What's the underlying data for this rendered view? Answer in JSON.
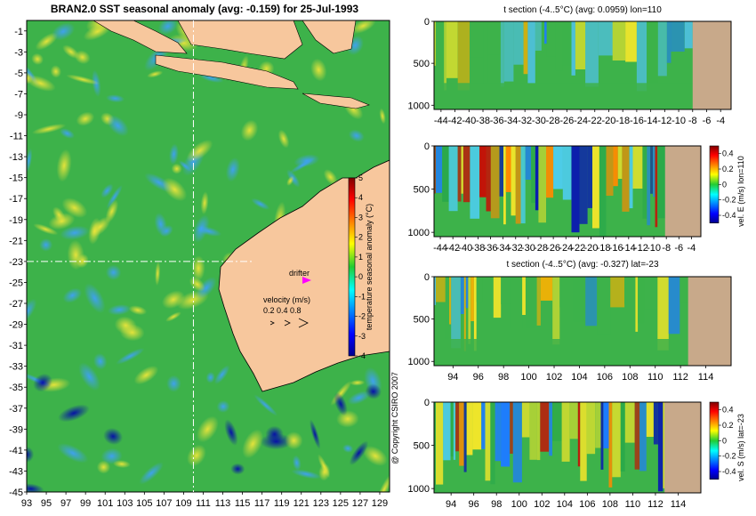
{
  "chart_data": [
    {
      "type": "heatmap",
      "title": "BRAN2.0 SST seasonal anomaly (avg: -0.159) for 25-Jul-1993",
      "x_ticks": [
        "93",
        "95",
        "97",
        "99",
        "101",
        "103",
        "105",
        "107",
        "109",
        "111",
        "113",
        "115",
        "117",
        "119",
        "121",
        "123",
        "125",
        "127",
        "129"
      ],
      "y_ticks": [
        "-1",
        "-3",
        "-5",
        "-7",
        "-9",
        "-11",
        "-13",
        "-15",
        "-17",
        "-19",
        "-21",
        "-23",
        "-25",
        "-27",
        "-29",
        "-31",
        "-33",
        "-35",
        "-37",
        "-39",
        "-41",
        "-43",
        "-45"
      ],
      "xlim": [
        93,
        130
      ],
      "ylim": [
        -45,
        0
      ],
      "colorbar": {
        "label": "temperature seasonal anomaly (°C)",
        "ticks": [
          "5",
          "4",
          "3",
          "2",
          "1",
          "0",
          "-1",
          "-2",
          "-3",
          "-4"
        ],
        "range": [
          -4,
          5
        ]
      },
      "markers": {
        "drifter_label": "drifter",
        "velocity_title": "velocity (m/s)",
        "velocity_scale": "0.2 0.4 0.8",
        "section_lon": 110,
        "section_lat": -23
      },
      "copyright": "@ Copyright CSIRO 2007"
    },
    {
      "type": "heatmap",
      "title": "t section (-4..5°C) (avg: 0.0959) lon=110",
      "x_ticks": [
        "-44",
        "-42",
        "-40",
        "-38",
        "-36",
        "-34",
        "-32",
        "-30",
        "-28",
        "-26",
        "-24",
        "-22",
        "-20",
        "-18",
        "-16",
        "-14",
        "-12",
        "-10",
        "-8",
        "-6",
        "-4"
      ],
      "y_ticks": [
        "0",
        "500",
        "1000"
      ],
      "xlim": [
        -45,
        -2.5
      ],
      "ylim": [
        1050,
        0
      ]
    },
    {
      "type": "heatmap",
      "title": "",
      "x_ticks": [
        "-44",
        "-42",
        "-40",
        "-38",
        "-36",
        "-34",
        "-32",
        "-30",
        "-28",
        "-26",
        "-24",
        "-22",
        "-20",
        "-18",
        "-16",
        "-14",
        "-12",
        "-10",
        "-8",
        "-6",
        "-4"
      ],
      "y_ticks": [
        "0",
        "500",
        "1000"
      ],
      "xlim": [
        -45,
        -2.5
      ],
      "ylim": [
        1050,
        0
      ],
      "colorbar": {
        "label": "vel. E (m/s) lon=110",
        "ticks": [
          "0.4",
          "0.2",
          "0",
          "-0.2",
          "-0.4"
        ],
        "range": [
          -0.5,
          0.5
        ]
      }
    },
    {
      "type": "heatmap",
      "title": "t section (-4..5°C) (avg: -0.327) lat=-23",
      "x_ticks": [
        "94",
        "96",
        "98",
        "100",
        "102",
        "104",
        "106",
        "108",
        "110",
        "112",
        "114"
      ],
      "y_ticks": [
        "0",
        "500",
        "1000"
      ],
      "xlim": [
        92.5,
        116
      ],
      "ylim": [
        1050,
        0
      ]
    },
    {
      "type": "heatmap",
      "title": "",
      "x_ticks": [
        "94",
        "96",
        "98",
        "100",
        "102",
        "104",
        "106",
        "108",
        "110",
        "112",
        "114"
      ],
      "y_ticks": [
        "0",
        "500",
        "1000"
      ],
      "xlim": [
        92.5,
        116
      ],
      "ylim": [
        1050,
        0
      ],
      "colorbar": {
        "label": "vel. S (m/s) lat=-23",
        "ticks": [
          "0.4",
          "0.2",
          "0",
          "-0.2",
          "-0.4"
        ],
        "range": [
          -0.5,
          0.5
        ]
      }
    }
  ]
}
